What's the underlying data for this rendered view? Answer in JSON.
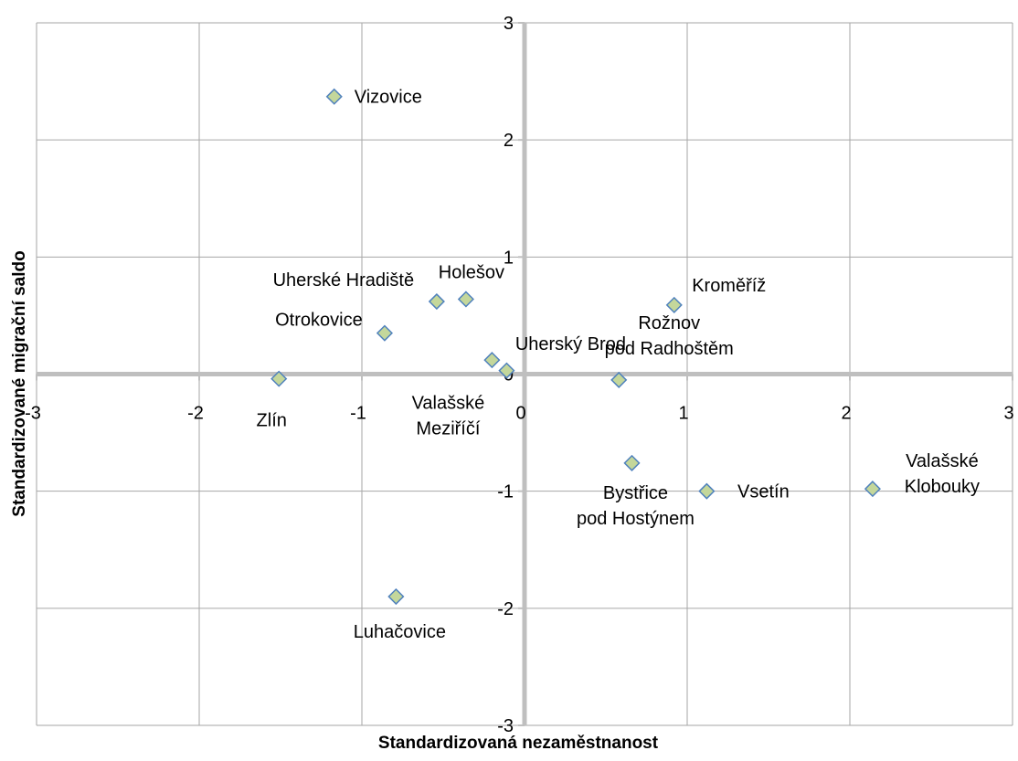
{
  "chart_data": {
    "type": "scatter",
    "title": "",
    "xlabel": "Standardizovaná nezaměstnanost",
    "ylabel": "Standardizované migrační saldo",
    "xlim": [
      -3,
      3
    ],
    "ylim": [
      -3,
      3
    ],
    "x_ticks": [
      -3,
      -2,
      -1,
      0,
      1,
      2,
      3
    ],
    "y_ticks": [
      -3,
      -2,
      -1,
      0,
      1,
      2,
      3
    ],
    "grid": true,
    "legend": "none",
    "marker": {
      "shape": "diamond",
      "fill": "#C4D79B",
      "stroke": "#4F81BD"
    },
    "grid_color": "#A6A6A6",
    "axis_color": "#BFBFBF",
    "points": [
      {
        "label": "Vizovice",
        "x": -1.17,
        "y": 2.37
      },
      {
        "label": "Holešov",
        "x": -0.36,
        "y": 0.64
      },
      {
        "label": "Uherské Hradiště",
        "x": -0.54,
        "y": 0.62
      },
      {
        "label": "Otrokovice",
        "x": -0.86,
        "y": 0.35
      },
      {
        "label": "Uherský Brod",
        "x": -0.2,
        "y": 0.12
      },
      {
        "label": "Valašské Meziříčí",
        "x": -0.11,
        "y": 0.03
      },
      {
        "label": "Zlín",
        "x": -1.51,
        "y": -0.04
      },
      {
        "label": "Kroměříž",
        "x": 0.92,
        "y": 0.59
      },
      {
        "label": "Rožnov pod Radhoštěm",
        "x": 0.58,
        "y": -0.05
      },
      {
        "label": "Bystřice pod Hostýnem",
        "x": 0.66,
        "y": -0.76
      },
      {
        "label": "Vsetín",
        "x": 1.12,
        "y": -1.0
      },
      {
        "label": "Valašské Klobouky",
        "x": 2.14,
        "y": -0.98
      },
      {
        "label": "Luhačovice",
        "x": -0.79,
        "y": -1.9
      }
    ]
  }
}
